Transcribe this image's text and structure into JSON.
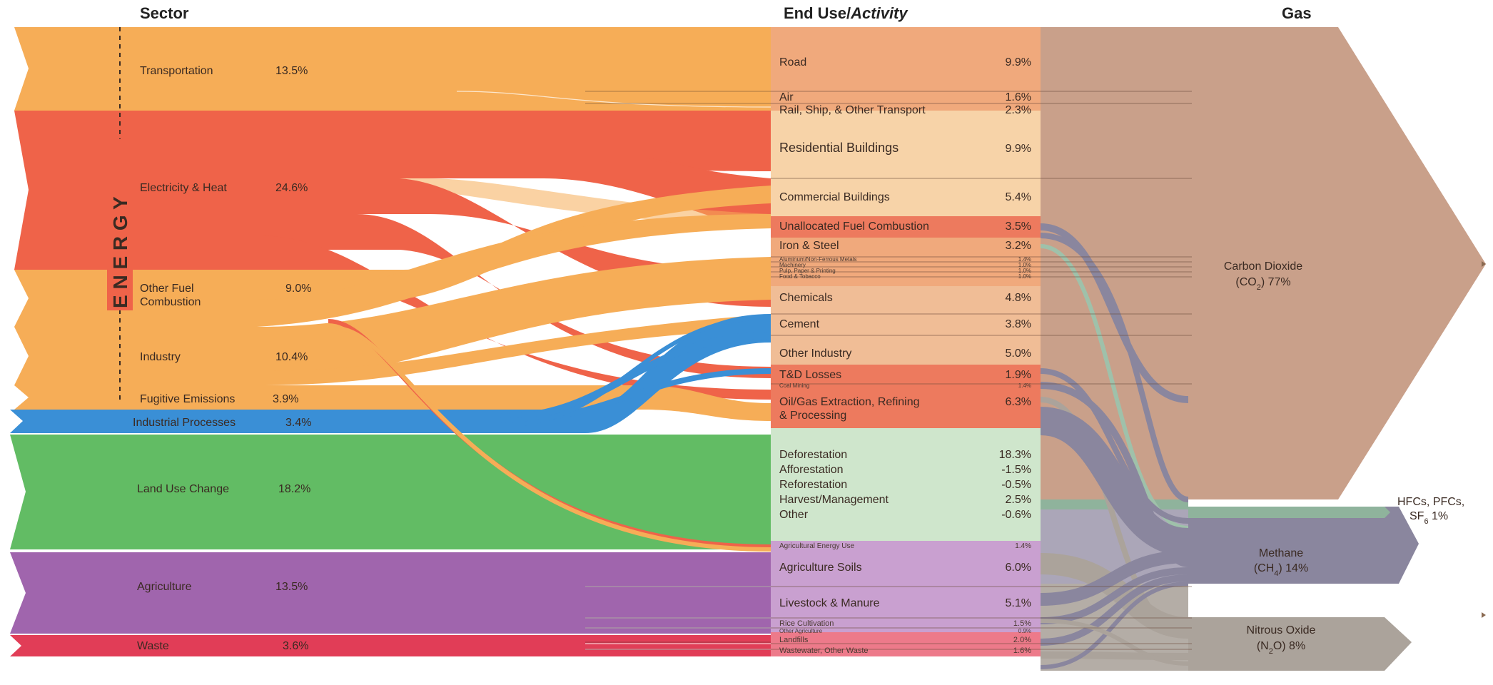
{
  "headers": {
    "sector": "Sector",
    "end_use_prefix": "End Use/",
    "end_use_suffix": "Activity",
    "gas": "Gas"
  },
  "energy_group_label": "E N E R G Y",
  "sectors": [
    {
      "name": "Transportation",
      "value": "13.5%",
      "color": "#f6ad57"
    },
    {
      "name": "Electricity & Heat",
      "value": "24.6%",
      "color": "#ef6349"
    },
    {
      "name": "Other Fuel",
      "name2": "Combustion",
      "value": "9.0%",
      "color": "#f6ad57"
    },
    {
      "name": "Industry",
      "value": "10.4%",
      "color": "#f6ad57"
    },
    {
      "name": "Fugitive Emissions",
      "value": "3.9%",
      "color": "#f6ad57"
    },
    {
      "name": "Industrial Processes",
      "value": "3.4%",
      "color": "#3a8fd6"
    },
    {
      "name": "Land Use Change",
      "value": "18.2%",
      "color": "#62bc64"
    },
    {
      "name": "Agriculture",
      "value": "13.5%",
      "color": "#a065ad"
    },
    {
      "name": "Waste",
      "value": "3.6%",
      "color": "#e13d57"
    }
  ],
  "end_uses": [
    {
      "name": "Road",
      "value": "9.9%"
    },
    {
      "name": "Air",
      "value": "1.6%"
    },
    {
      "name": "Rail, Ship, & Other Transport",
      "value": "2.3%"
    },
    {
      "name": "Residential Buildings",
      "value": "9.9%"
    },
    {
      "name": "Commercial Buildings",
      "value": "5.4%"
    },
    {
      "name": "Unallocated Fuel Combustion",
      "value": "3.5%"
    },
    {
      "name": "Iron & Steel",
      "value": "3.2%"
    },
    {
      "name": "Aluminum/Non-Ferrous Metals",
      "value": "1.4%"
    },
    {
      "name": "Machinery",
      "value": "1.0%"
    },
    {
      "name": "Pulp, Paper & Printing",
      "value": "1.0%"
    },
    {
      "name": "Food & Tobacco",
      "value": "1.0%"
    },
    {
      "name": "Chemicals",
      "value": "4.8%"
    },
    {
      "name": "Cement",
      "value": "3.8%"
    },
    {
      "name": "Other Industry",
      "value": "5.0%"
    },
    {
      "name": "T&D Losses",
      "value": "1.9%"
    },
    {
      "name": "Coal Mining",
      "value": "1.4%"
    },
    {
      "name": "Oil/Gas Extraction, Refining",
      "name2": "& Processing",
      "value": "6.3%"
    },
    {
      "name": "Deforestation",
      "value": "18.3%"
    },
    {
      "name": "Afforestation",
      "value": "-1.5%"
    },
    {
      "name": "Reforestation",
      "value": "-0.5%"
    },
    {
      "name": "Harvest/Management",
      "value": "2.5%"
    },
    {
      "name": "Other",
      "value": "-0.6%"
    },
    {
      "name": "Agricultural Energy Use",
      "value": "1.4%"
    },
    {
      "name": "Agriculture Soils",
      "value": "6.0%"
    },
    {
      "name": "Livestock & Manure",
      "value": "5.1%"
    },
    {
      "name": "Rice Cultivation",
      "value": "1.5%"
    },
    {
      "name": "Other Agriculture",
      "value": "0.9%"
    },
    {
      "name": "Landfills",
      "value": "2.0%"
    },
    {
      "name": "Wastewater, Other Waste",
      "value": "1.6%"
    }
  ],
  "gases": [
    {
      "name": "Carbon Dioxide",
      "formula": "(CO",
      "sub": "2",
      "tail": ")  77%",
      "color": "#c9a08a"
    },
    {
      "name": "HFCs, PFCs,",
      "formula": "SF",
      "sub": "6",
      "tail": "  1%",
      "color": "#8fb39c"
    },
    {
      "name": "Methane",
      "formula": "(CH",
      "sub": "4",
      "tail": ")  14%",
      "color": "#8a869e"
    },
    {
      "name": "Nitrous Oxide",
      "formula": "(N",
      "sub": "2",
      "tail": "O)  8%",
      "color": "#aba39b"
    }
  ],
  "colors": {
    "orange": "#f6ad57",
    "red": "#ef6349",
    "blue": "#3a8fd6",
    "green": "#62bc64",
    "purple": "#a065ad",
    "crimson": "#e13d57",
    "co2": "#c9a08a",
    "ch4": "#8a869e",
    "n2o": "#aba39b",
    "fgas": "#8fb39c"
  }
}
